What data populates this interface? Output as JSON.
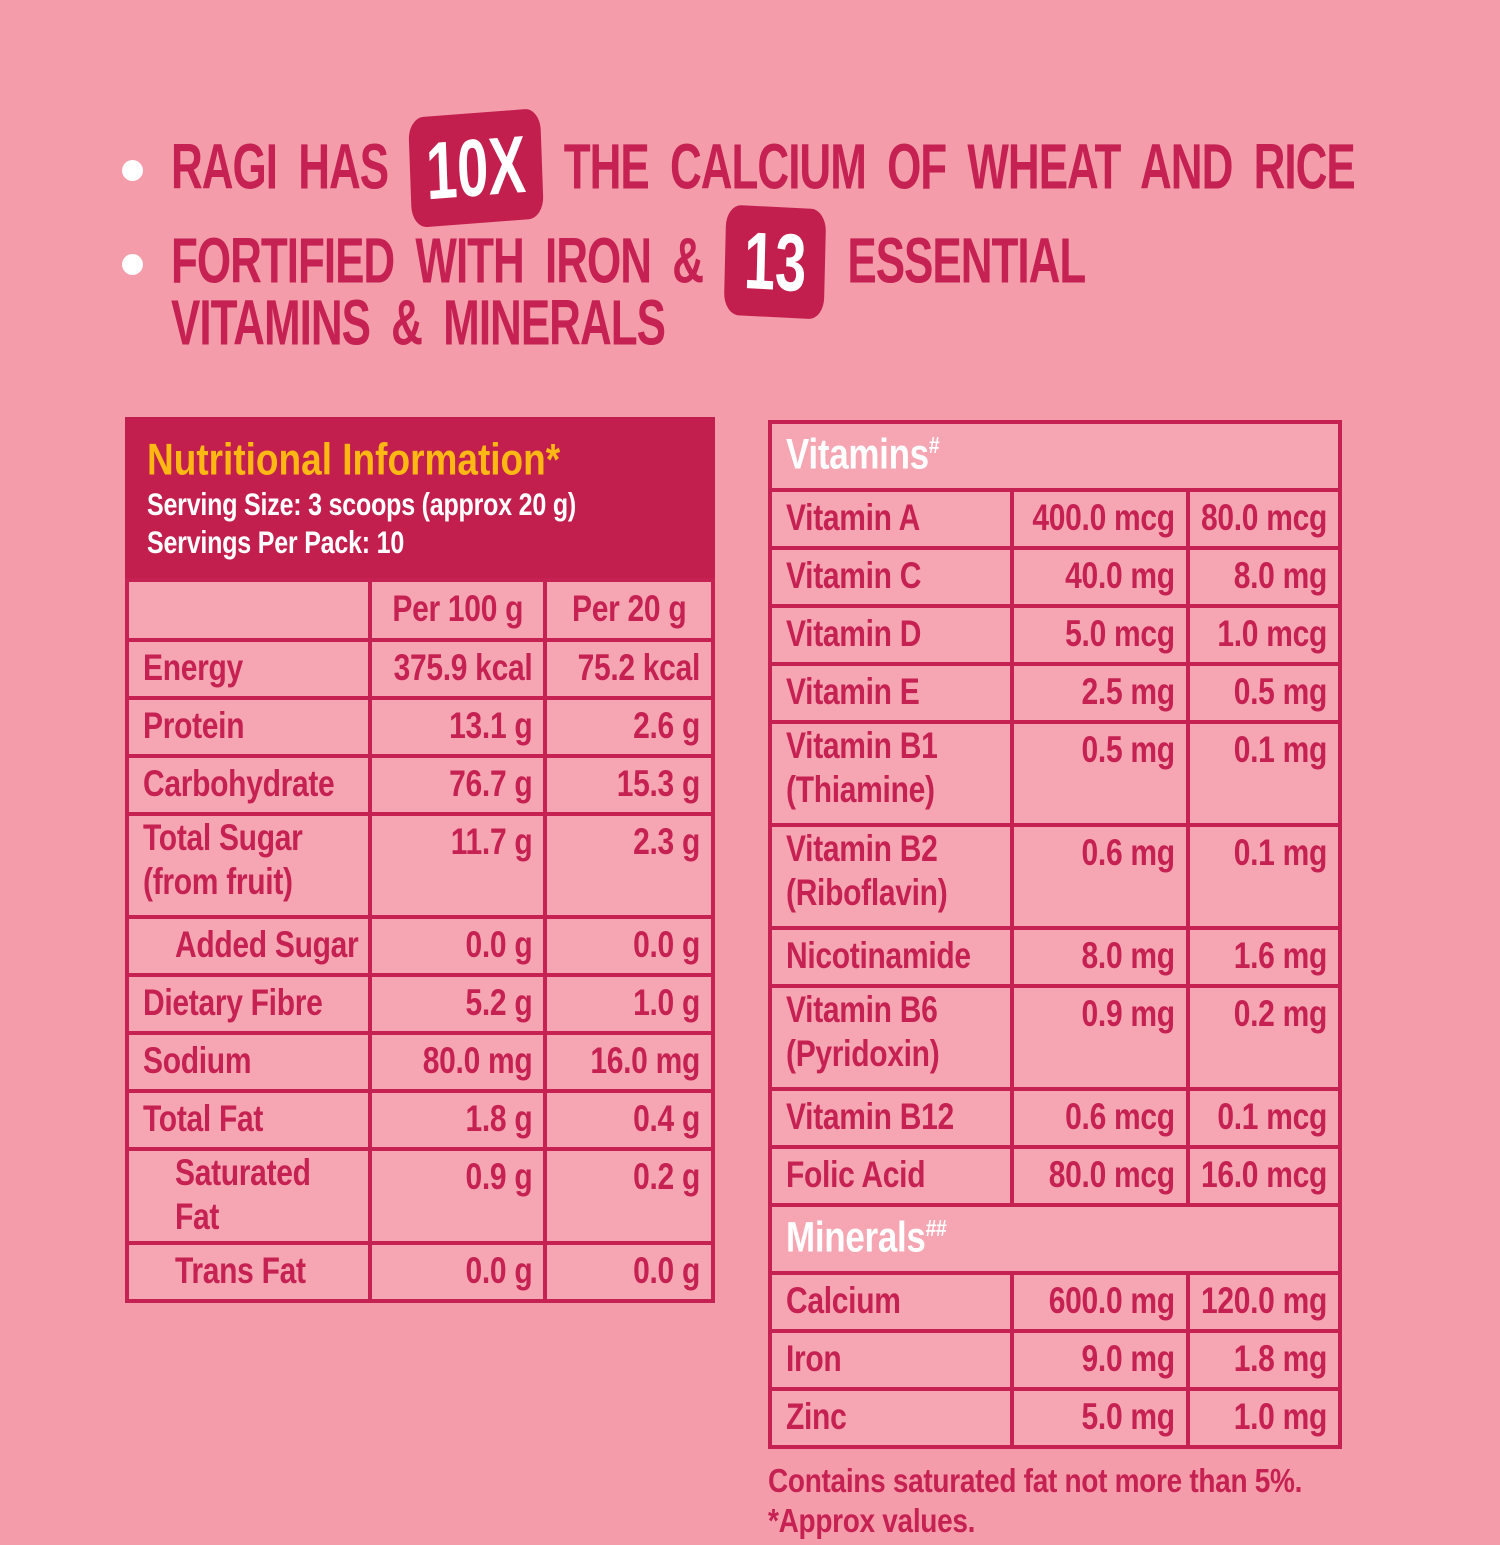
{
  "palette": {
    "page_bg": "#F49CA9",
    "cell_bg": "#F6A6B2",
    "accent": "#C52152",
    "accent_deep": "#C21F4E",
    "yellow": "#FDB813",
    "white": "#FFFFFF"
  },
  "claims": {
    "bullet1": {
      "pre": "RAGI HAS",
      "badge": "10X",
      "post": "THE CALCIUM OF WHEAT AND RICE"
    },
    "bullet2": {
      "pre": "FORTIFIED WITH IRON &",
      "badge": "13",
      "post": "ESSENTIAL",
      "line2": "VITAMINS & MINERALS"
    }
  },
  "nutrition": {
    "title": "Nutritional Information*",
    "serving_size": "Serving Size: 3 scoops (approx 20 g)",
    "servings_per_pack": "Servings Per Pack: 10",
    "columns": [
      "",
      "Per 100 g",
      "Per 20 g"
    ],
    "rows": [
      {
        "label": "Energy",
        "per100": "375.9 kcal",
        "per20": "75.2 kcal",
        "indent": false
      },
      {
        "label": "Protein",
        "per100": "13.1 g",
        "per20": "2.6 g",
        "indent": false
      },
      {
        "label": "Carbohydrate",
        "per100": "76.7 g",
        "per20": "15.3 g",
        "indent": false
      },
      {
        "label": "Total Sugar\n(from fruit)",
        "per100": "11.7 g",
        "per20": "2.3 g",
        "indent": false
      },
      {
        "label": "Added Sugar",
        "per100": "0.0 g",
        "per20": "0.0 g",
        "indent": true
      },
      {
        "label": "Dietary Fibre",
        "per100": "5.2 g",
        "per20": "1.0 g",
        "indent": false
      },
      {
        "label": "Sodium",
        "per100": "80.0 mg",
        "per20": "16.0 mg",
        "indent": false
      },
      {
        "label": "Total Fat",
        "per100": "1.8 g",
        "per20": "0.4 g",
        "indent": false
      },
      {
        "label": "Saturated Fat",
        "per100": "0.9 g",
        "per20": "0.2 g",
        "indent": true
      },
      {
        "label": "Trans Fat",
        "per100": "0.0 g",
        "per20": "0.0 g",
        "indent": true
      }
    ]
  },
  "micronutrients": {
    "sections": [
      {
        "header": "Vitamins",
        "header_sup": "#",
        "rows": [
          {
            "label": "Vitamin A",
            "per100": "400.0 mcg",
            "per20": "80.0 mcg"
          },
          {
            "label": "Vitamin C",
            "per100": "40.0 mg",
            "per20": "8.0 mg"
          },
          {
            "label": "Vitamin D",
            "per100": "5.0 mcg",
            "per20": "1.0 mcg"
          },
          {
            "label": "Vitamin E",
            "per100": "2.5 mg",
            "per20": "0.5 mg"
          },
          {
            "label": "Vitamin B1\n(Thiamine)",
            "per100": "0.5 mg",
            "per20": "0.1 mg"
          },
          {
            "label": "Vitamin B2\n(Riboflavin)",
            "per100": "0.6 mg",
            "per20": "0.1 mg"
          },
          {
            "label": "Nicotinamide",
            "per100": "8.0 mg",
            "per20": "1.6 mg"
          },
          {
            "label": "Vitamin B6\n(Pyridoxin)",
            "per100": "0.9 mg",
            "per20": "0.2 mg"
          },
          {
            "label": "Vitamin B12",
            "per100": "0.6 mcg",
            "per20": "0.1 mcg"
          },
          {
            "label": "Folic Acid",
            "per100": "80.0 mcg",
            "per20": "16.0 mcg"
          }
        ]
      },
      {
        "header": "Minerals",
        "header_sup": "##",
        "rows": [
          {
            "label": "Calcium",
            "per100": "600.0 mg",
            "per20": "120.0 mg"
          },
          {
            "label": "Iron",
            "per100": "9.0 mg",
            "per20": "1.8 mg"
          },
          {
            "label": "Zinc",
            "per100": "5.0 mg",
            "per20": "1.0 mg"
          }
        ]
      }
    ]
  },
  "footnotes": [
    "Contains saturated fat not more than 5%.",
    "*Approx values."
  ]
}
